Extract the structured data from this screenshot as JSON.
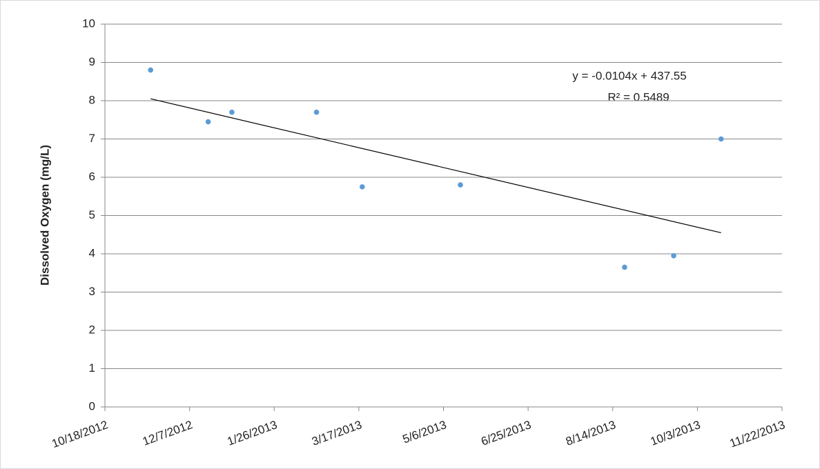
{
  "chart_data": {
    "type": "scatter",
    "y_axis_label": "Dissolved Oxygen (mg/L)",
    "x": [
      "11/14/2012",
      "12/18/2012",
      "1/1/2013",
      "2/20/2013",
      "3/19/2013",
      "5/16/2013",
      "8/21/2013",
      "9/19/2013",
      "10/17/2013"
    ],
    "values": [
      8.8,
      7.45,
      7.7,
      7.7,
      5.75,
      5.8,
      3.65,
      3.95,
      7.0
    ],
    "color": "#5b9bd5",
    "xlim": [
      "10/18/2012",
      "11/22/2013"
    ],
    "xticks": [
      "10/18/2012",
      "12/7/2012",
      "1/26/2013",
      "3/17/2013",
      "5/6/2013",
      "6/25/2013",
      "8/14/2013",
      "10/3/2013",
      "11/22/2013"
    ],
    "ylim": [
      0,
      10
    ],
    "yticks": [
      0,
      1,
      2,
      3,
      4,
      5,
      6,
      7,
      8,
      9,
      10
    ],
    "grid": true,
    "trendline": {
      "equation": "y = -0.0104x + 437.55",
      "r_squared": "R² = 0.5489",
      "x": [
        "11/14/2012",
        "10/17/2013"
      ],
      "values": [
        8.05,
        4.55
      ],
      "color": "#000000"
    }
  }
}
